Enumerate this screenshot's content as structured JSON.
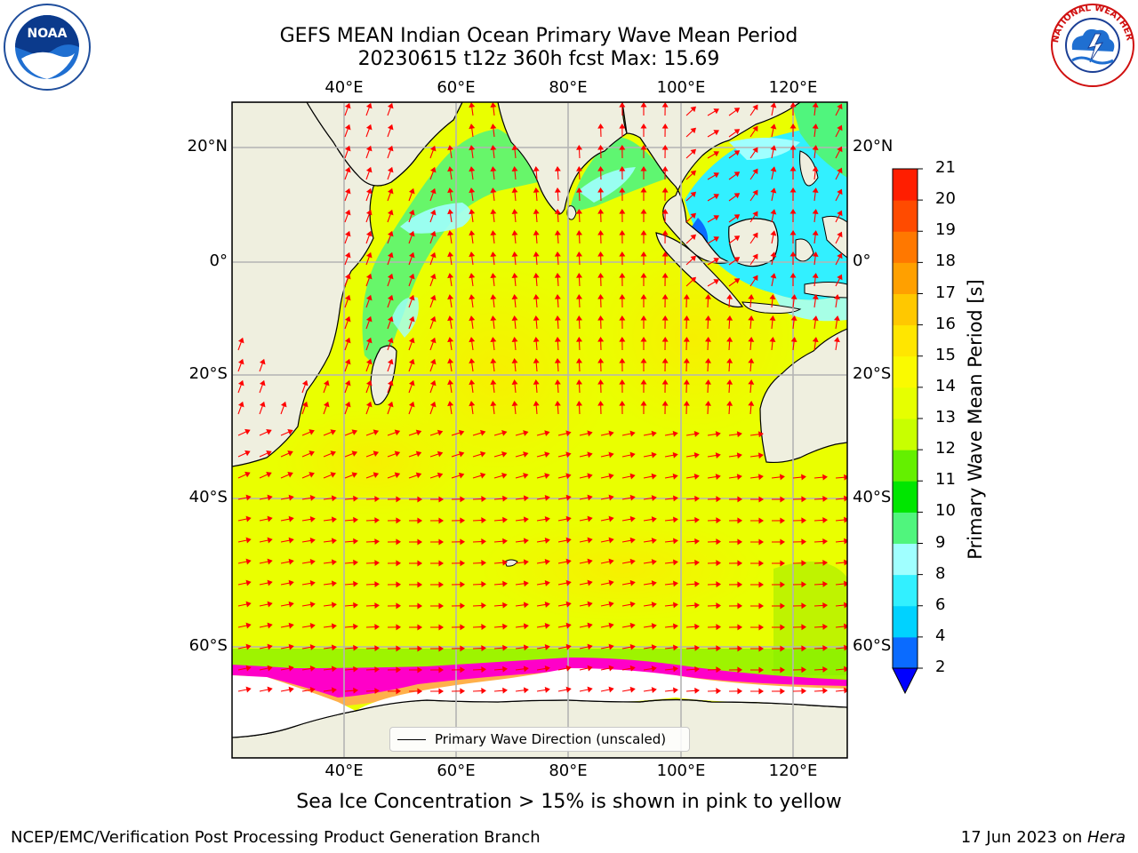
{
  "header": {
    "title_line1": "GEFS MEAN Indian Ocean Primary Wave Mean Period",
    "title_line2": "20230615 t12z 360h fcst   Max: 15.69"
  },
  "logos": {
    "left": {
      "text": "NOAA",
      "icon": "noaa-logo"
    },
    "right": {
      "icon": "nws-logo",
      "ring_text": "NATIONAL WEATHER SERVICE"
    }
  },
  "map": {
    "lon_ticks": [
      "40°E",
      "60°E",
      "80°E",
      "100°E",
      "120°E"
    ],
    "lat_ticks": [
      "20°N",
      "0°",
      "20°S",
      "40°S",
      "60°S"
    ],
    "land_color": "#efefdf",
    "ice_note": "Sea Ice Concentration > 15% is shown in pink to yellow",
    "legend_label": "Primary Wave Direction (unscaled)",
    "arrow_color": "#ff0000"
  },
  "colorbar": {
    "title": "Primary Wave Mean Period [s]",
    "tick_labels": [
      "2",
      "4",
      "6",
      "8",
      "9",
      "10",
      "11",
      "12",
      "13",
      "14",
      "15",
      "16",
      "17",
      "18",
      "19",
      "20",
      "21"
    ],
    "colors": [
      "#0a6bff",
      "#00d2ff",
      "#32f0ff",
      "#a0ffff",
      "#50f57d",
      "#00e600",
      "#64f000",
      "#c8ff00",
      "#e6ff00",
      "#fafa00",
      "#ffe600",
      "#ffc800",
      "#ffa000",
      "#ff7800",
      "#ff4b00",
      "#ff1e00"
    ],
    "extend_color": "#0000ff"
  },
  "footer": {
    "left": "NCEP/EMC/Verification Post Processing Product Generation Branch",
    "right_date": "17 Jun 2023 on ",
    "right_host": "Hera"
  }
}
